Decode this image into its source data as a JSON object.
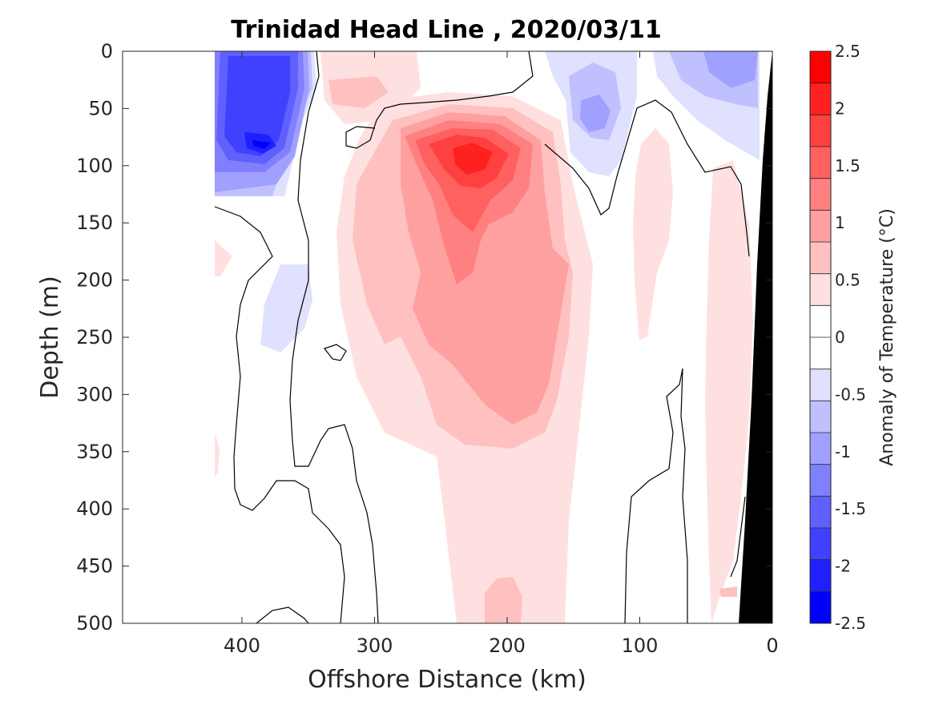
{
  "chart_data": {
    "type": "heatmap",
    "title": "Trinidad Head Line , 2020/03/11",
    "xlabel": "Offshore Distance (km)",
    "ylabel": "Depth (m)",
    "xlim": [
      490,
      0
    ],
    "ylim": [
      0,
      500
    ],
    "x_reversed": true,
    "y_reversed": true,
    "x_ticks": [
      400,
      300,
      200,
      100,
      0
    ],
    "y_ticks": [
      0,
      50,
      100,
      150,
      200,
      250,
      300,
      350,
      400,
      450,
      500
    ],
    "colorbar": {
      "label": "Anomaly of Temperature (°C)",
      "min": -2.5,
      "max": 2.5,
      "step": 0.25,
      "ticks": [
        2.5,
        2,
        1.5,
        1,
        0.5,
        0,
        -0.5,
        -1,
        -1.5,
        -2,
        -2.5
      ],
      "colors": [
        "#0000ff",
        "#2020ff",
        "#4040ff",
        "#6060ff",
        "#8080ff",
        "#a0a0ff",
        "#c0c0ff",
        "#e0e0ff",
        "#ffffff",
        "#ffffff",
        "#ffe0e0",
        "#ffc0c0",
        "#ffa0a0",
        "#ff8080",
        "#ff6060",
        "#ff4040",
        "#ff2020",
        "#ff0000"
      ]
    },
    "grid": false,
    "data_extent_x_km": [
      420,
      0
    ],
    "features": [
      {
        "name": "warm core",
        "type": "warm",
        "x_km": 230,
        "depth_m": 100,
        "anomaly": 2.3
      },
      {
        "name": "cold core",
        "type": "cold",
        "x_km": 385,
        "depth_m": 80,
        "anomaly": -2.3
      },
      {
        "name": "cold patch",
        "type": "cold",
        "x_km": 130,
        "depth_m": 60,
        "anomaly": -1.0
      },
      {
        "name": "cold patch",
        "type": "cold",
        "x_km": 40,
        "depth_m": 20,
        "anomaly": -0.9
      },
      {
        "name": "cold patch",
        "type": "cold",
        "x_km": 365,
        "depth_m": 220,
        "anomaly": -0.4
      },
      {
        "name": "warm patch",
        "type": "warm",
        "x_km": 300,
        "depth_m": 30,
        "anomaly": 0.6
      },
      {
        "name": "warm plume",
        "type": "warm",
        "x_km": 210,
        "depth_m": 250,
        "anomaly": 0.8
      },
      {
        "name": "warm band",
        "type": "warm",
        "x_km": 90,
        "depth_m": 250,
        "anomaly": 0.3
      },
      {
        "name": "warm band",
        "type": "warm",
        "x_km": 35,
        "depth_m": 350,
        "anomaly": 0.3
      }
    ],
    "bathymetry_color": "#000000"
  }
}
